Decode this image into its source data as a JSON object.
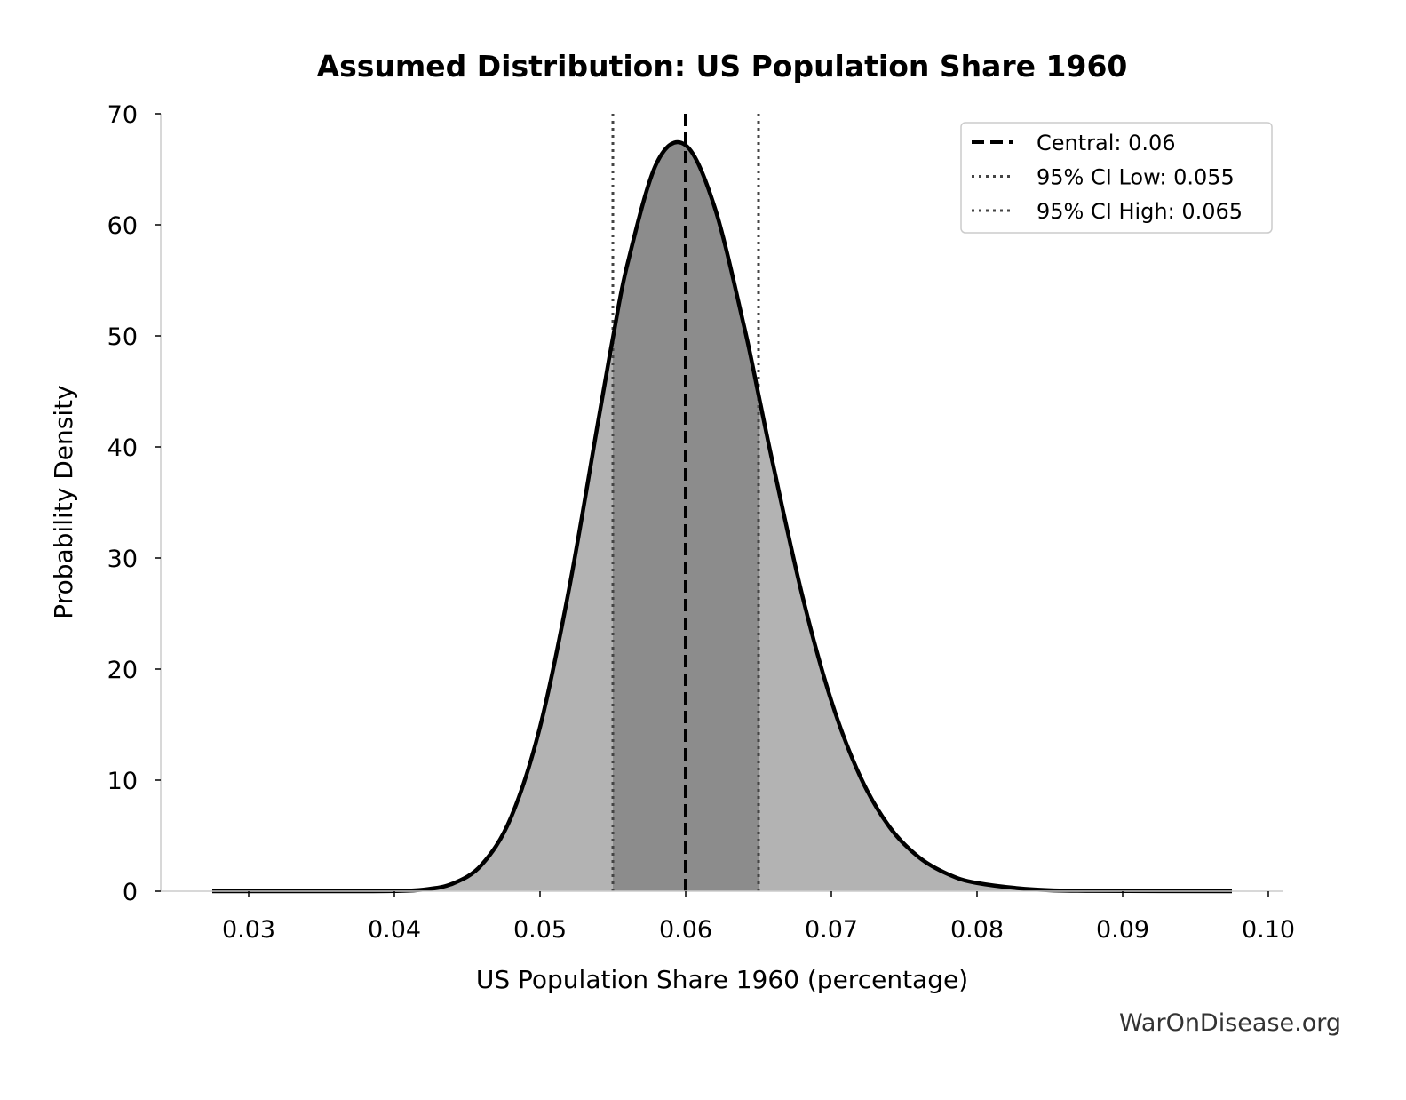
{
  "chart_data": {
    "type": "area",
    "title": "Assumed Distribution: US Population Share 1960",
    "xlabel": "US Population Share 1960 (percentage)",
    "ylabel": "Probability Density",
    "xlim": [
      0.024,
      0.101
    ],
    "ylim": [
      0,
      70
    ],
    "xticks": [
      0.03,
      0.04,
      0.05,
      0.06,
      0.07,
      0.08,
      0.09,
      0.1
    ],
    "xtick_labels": [
      "0.03",
      "0.04",
      "0.05",
      "0.06",
      "0.07",
      "0.08",
      "0.09",
      "0.10"
    ],
    "yticks": [
      0,
      10,
      20,
      30,
      40,
      50,
      60,
      70
    ],
    "ytick_labels": [
      "0",
      "10",
      "20",
      "30",
      "40",
      "50",
      "60",
      "70"
    ],
    "grid": false,
    "legend_position": "top-right",
    "series": {
      "x": [
        0.0275,
        0.036,
        0.04,
        0.042,
        0.044,
        0.046,
        0.048,
        0.05,
        0.052,
        0.054,
        0.055,
        0.056,
        0.058,
        0.06,
        0.062,
        0.064,
        0.065,
        0.066,
        0.068,
        0.07,
        0.072,
        0.074,
        0.076,
        0.078,
        0.08,
        0.084,
        0.088,
        0.0975
      ],
      "y": [
        0,
        0.0005,
        0.023,
        0.146,
        0.68,
        2.39,
        6.62,
        14.78,
        27.26,
        42.36,
        49.8,
        56.45,
        65.53,
        67.16,
        61.53,
        50.91,
        44.7,
        38.41,
        26.65,
        17.13,
        10.27,
        5.77,
        3.07,
        1.54,
        0.74,
        0.149,
        0.026,
        0
      ]
    },
    "vlines": [
      {
        "label": "Central: 0.06",
        "x": 0.06,
        "style": "dashed",
        "color": "#000000"
      },
      {
        "label": "95% CI Low: 0.055",
        "x": 0.055,
        "style": "dotted",
        "color": "#444444"
      },
      {
        "label": "95% CI High: 0.065",
        "x": 0.065,
        "style": "dotted",
        "color": "#444444"
      }
    ],
    "ci_range": [
      0.055,
      0.065
    ],
    "colors": {
      "curve": "#000000",
      "fill": "#b3b3b3",
      "ci_fill": "#8c8c8c",
      "spine": "#cccccc"
    }
  },
  "watermark": "WarOnDisease.org"
}
